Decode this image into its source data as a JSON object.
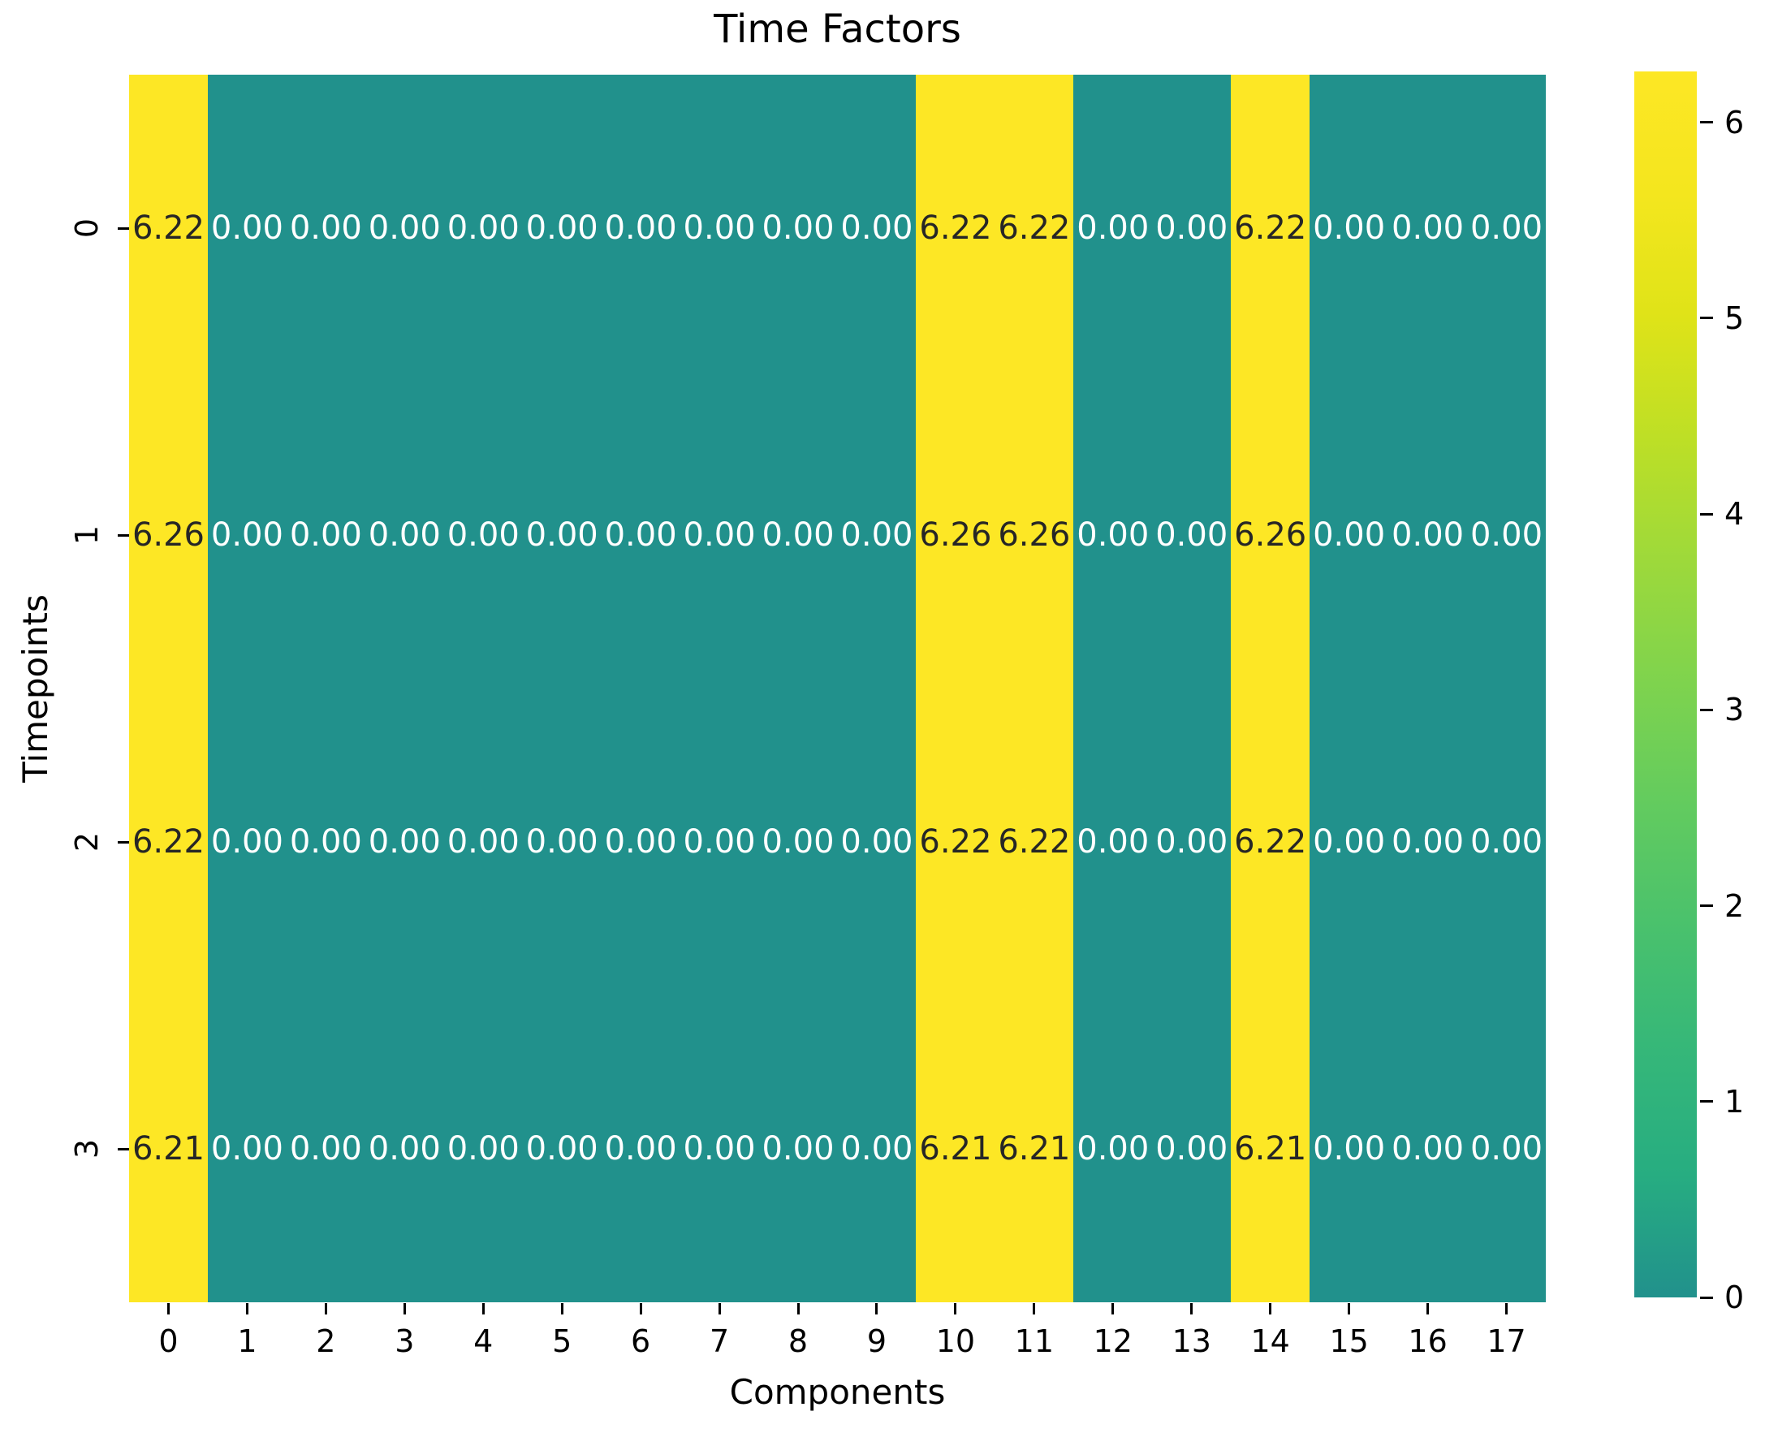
{
  "figure": {
    "background_color": "#ffffff",
    "text_color": "#000000"
  },
  "chart_data": {
    "type": "heatmap",
    "title": "Time Factors",
    "xlabel": "Components",
    "ylabel": "Timepoints",
    "x_tick_labels": [
      "0",
      "1",
      "2",
      "3",
      "4",
      "5",
      "6",
      "7",
      "8",
      "9",
      "10",
      "11",
      "12",
      "13",
      "14",
      "15",
      "16",
      "17"
    ],
    "y_tick_labels": [
      "0",
      "1",
      "2",
      "3"
    ],
    "matrix": [
      [
        6.22,
        0.0,
        0.0,
        0.0,
        0.0,
        0.0,
        0.0,
        0.0,
        0.0,
        0.0,
        6.22,
        6.22,
        0.0,
        0.0,
        6.22,
        0.0,
        0.0,
        0.0
      ],
      [
        6.26,
        0.0,
        0.0,
        0.0,
        0.0,
        0.0,
        0.0,
        0.0,
        0.0,
        0.0,
        6.26,
        6.26,
        0.0,
        0.0,
        6.26,
        0.0,
        0.0,
        0.0
      ],
      [
        6.22,
        0.0,
        0.0,
        0.0,
        0.0,
        0.0,
        0.0,
        0.0,
        0.0,
        0.0,
        6.22,
        6.22,
        0.0,
        0.0,
        6.22,
        0.0,
        0.0,
        0.0
      ],
      [
        6.21,
        0.0,
        0.0,
        0.0,
        0.0,
        0.0,
        0.0,
        0.0,
        0.0,
        0.0,
        6.21,
        6.21,
        0.0,
        0.0,
        6.21,
        0.0,
        0.0,
        0.0
      ]
    ],
    "annotation_decimals": 2,
    "vmin": 0,
    "vmax": 6.26,
    "grid": false,
    "legend_position": "right-colorbar",
    "colors": {
      "cell_low": "#21918c",
      "cell_high": "#fde725",
      "annot_on_low": "#ffffff",
      "annot_on_high": "#262626"
    },
    "colorbar": {
      "tick_values": [
        0,
        1,
        2,
        3,
        4,
        5,
        6
      ],
      "gradient_stops_bottom_to_top": [
        "#21918c",
        "#27ad81",
        "#35b779",
        "#49c16d",
        "#62cb5f",
        "#7ed34e",
        "#9dd93b",
        "#bddf26",
        "#dfe318",
        "#f4e61e",
        "#fde725"
      ]
    }
  }
}
